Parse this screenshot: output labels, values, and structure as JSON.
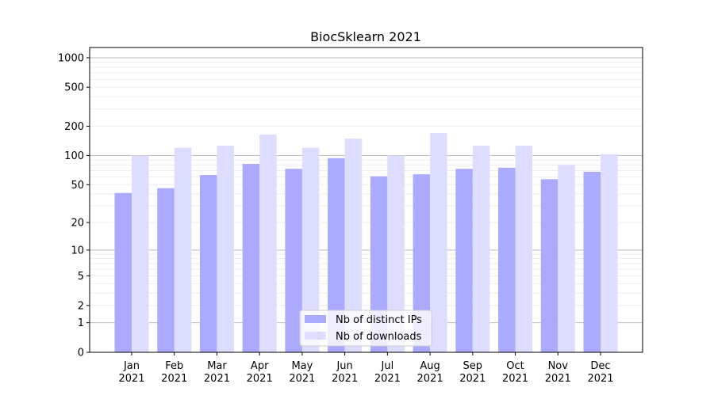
{
  "chart_data": {
    "type": "bar",
    "title": "BiocSklearn 2021",
    "xlabel": "",
    "ylabel": "",
    "yscale": "symlog (log10(v+1))",
    "ylim": [
      0,
      1300
    ],
    "yticks": [
      0,
      1,
      2,
      5,
      10,
      20,
      50,
      100,
      200,
      500,
      1000
    ],
    "ytick_labels": [
      "0",
      "1",
      "2",
      "5",
      "10",
      "20",
      "50",
      "100",
      "200",
      "500",
      "1000"
    ],
    "categories": [
      [
        "Jan",
        "2021"
      ],
      [
        "Feb",
        "2021"
      ],
      [
        "Mar",
        "2021"
      ],
      [
        "Apr",
        "2021"
      ],
      [
        "May",
        "2021"
      ],
      [
        "Jun",
        "2021"
      ],
      [
        "Jul",
        "2021"
      ],
      [
        "Aug",
        "2021"
      ],
      [
        "Sep",
        "2021"
      ],
      [
        "Oct",
        "2021"
      ],
      [
        "Nov",
        "2021"
      ],
      [
        "Dec",
        "2021"
      ]
    ],
    "series": [
      {
        "name": "Nb of distinct IPs",
        "color": "#aaaaff",
        "values": [
          41,
          46,
          63,
          82,
          73,
          94,
          61,
          64,
          73,
          75,
          57,
          68
        ]
      },
      {
        "name": "Nb of downloads",
        "color": "#ddddff",
        "values": [
          100,
          120,
          126,
          164,
          120,
          149,
          100,
          170,
          126,
          126,
          80,
          103
        ]
      }
    ],
    "grid": true,
    "legend_position": "lower-center"
  }
}
